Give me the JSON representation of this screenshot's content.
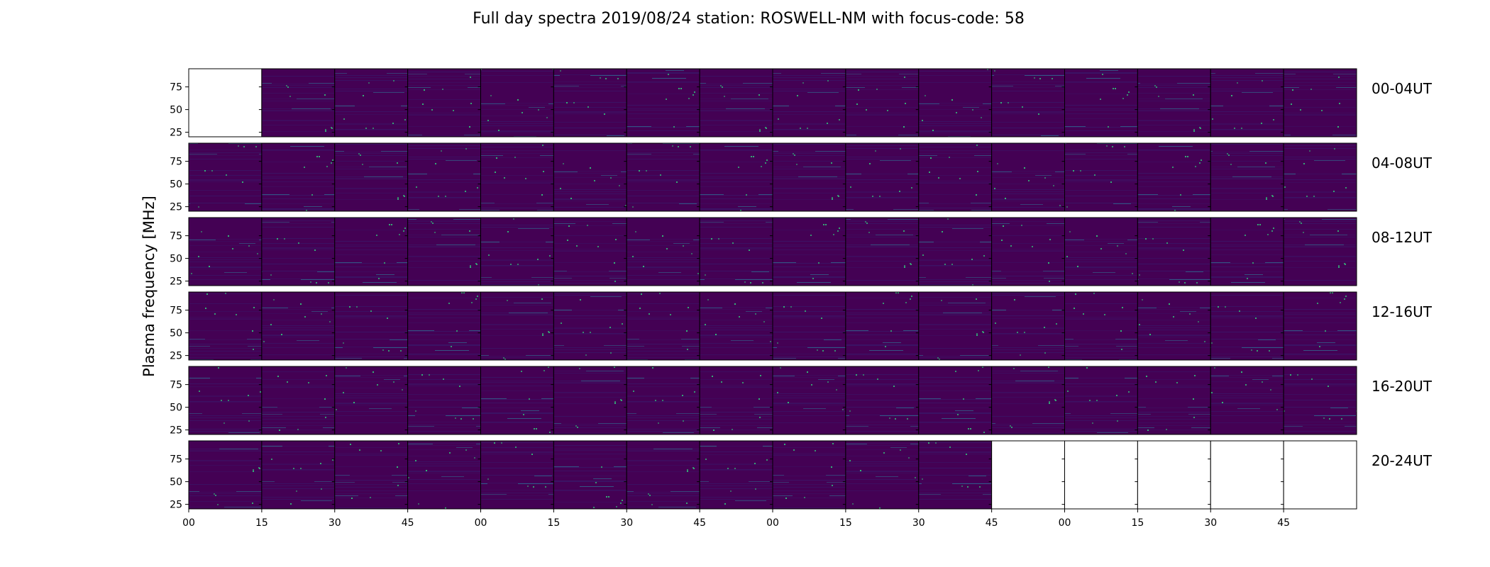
{
  "chart_data": {
    "type": "heatmap",
    "title": "Full day spectra 2019/08/24 station: ROSWELL-NM with focus-code: 58",
    "ylabel": "Plasma frequency [MHz]",
    "xlabel": "",
    "ylim": [
      20,
      95
    ],
    "y_ticks": [
      25,
      50,
      75
    ],
    "x_tick_labels": [
      "00",
      "15",
      "30",
      "45",
      "00",
      "15",
      "30",
      "45",
      "00",
      "15",
      "30",
      "45",
      "00",
      "15",
      "30",
      "45"
    ],
    "panels_per_row": 16,
    "rows": [
      {
        "label": "00-04UT",
        "present": [
          0,
          1,
          1,
          1,
          1,
          1,
          1,
          1,
          1,
          1,
          1,
          1,
          1,
          1,
          1,
          1
        ]
      },
      {
        "label": "04-08UT",
        "present": [
          1,
          1,
          1,
          1,
          1,
          1,
          1,
          1,
          1,
          1,
          1,
          1,
          1,
          1,
          1,
          1
        ]
      },
      {
        "label": "08-12UT",
        "present": [
          1,
          1,
          1,
          1,
          1,
          1,
          1,
          1,
          1,
          1,
          1,
          1,
          1,
          1,
          1,
          1
        ]
      },
      {
        "label": "12-16UT",
        "present": [
          1,
          1,
          1,
          1,
          1,
          1,
          1,
          1,
          1,
          1,
          1,
          1,
          1,
          1,
          1,
          1
        ]
      },
      {
        "label": "16-20UT",
        "present": [
          1,
          1,
          1,
          1,
          1,
          1,
          1,
          1,
          1,
          1,
          1,
          1,
          1,
          1,
          1,
          1
        ]
      },
      {
        "label": "20-24UT",
        "present": [
          1,
          1,
          1,
          1,
          1,
          1,
          1,
          1,
          1,
          1,
          1,
          0,
          0,
          0,
          0,
          0
        ]
      }
    ],
    "colors": {
      "background": "#440154",
      "low": "#3b1466",
      "mid": "#31688e",
      "high": "#35b779"
    },
    "grid": false
  }
}
